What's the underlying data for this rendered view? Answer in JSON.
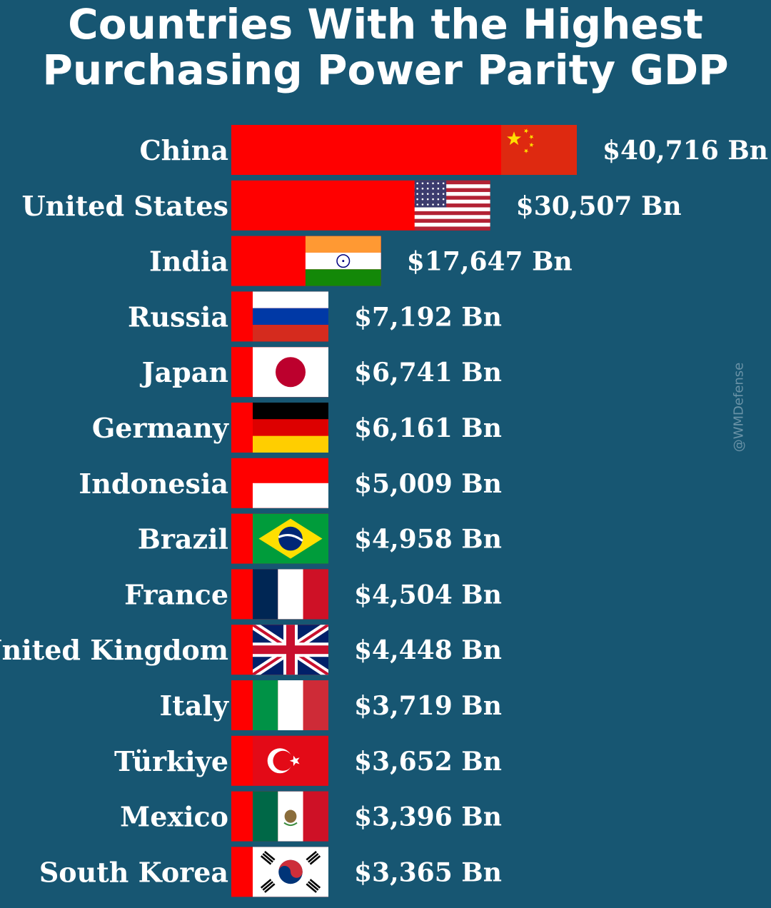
{
  "title_lines": [
    "Countries With the Highest",
    "Purchasing Power Parity GDP"
  ],
  "watermark": "@WMDefense",
  "colors": {
    "background": "#175672",
    "bar": "#ff0000",
    "text": "#ffffff"
  },
  "chart_data": {
    "type": "bar",
    "orientation": "horizontal",
    "title": "Countries With the Highest Purchasing Power Parity GDP",
    "unit_prefix": "$",
    "unit_suffix": " Bn",
    "categories": [
      "China",
      "United States",
      "India",
      "Russia",
      "Japan",
      "Germany",
      "Indonesia",
      "Brazil",
      "France",
      "United Kingdom",
      "Italy",
      "Türkiye",
      "Mexico",
      "South Korea"
    ],
    "values": [
      40716,
      30507,
      17647,
      7192,
      6741,
      6161,
      5009,
      4958,
      4504,
      4448,
      3719,
      3652,
      3396,
      3365
    ],
    "value_labels": [
      "$40,716 Bn",
      "$30,507 Bn",
      "$17,647 Bn",
      "$7,192 Bn",
      "$6,741 Bn",
      "$6,161 Bn",
      "$5,009 Bn",
      "$4,958 Bn",
      "$4,504 Bn",
      "$4,448 Bn",
      "$3,719 Bn",
      "$3,652 Bn",
      "$3,396 Bn",
      "$3,365 Bn"
    ],
    "flag_icons": [
      "china-flag-icon",
      "usa-flag-icon",
      "india-flag-icon",
      "russia-flag-icon",
      "japan-flag-icon",
      "germany-flag-icon",
      "indonesia-flag-icon",
      "brazil-flag-icon",
      "france-flag-icon",
      "uk-flag-icon",
      "italy-flag-icon",
      "turkiye-flag-icon",
      "mexico-flag-icon",
      "south-korea-flag-icon"
    ]
  }
}
